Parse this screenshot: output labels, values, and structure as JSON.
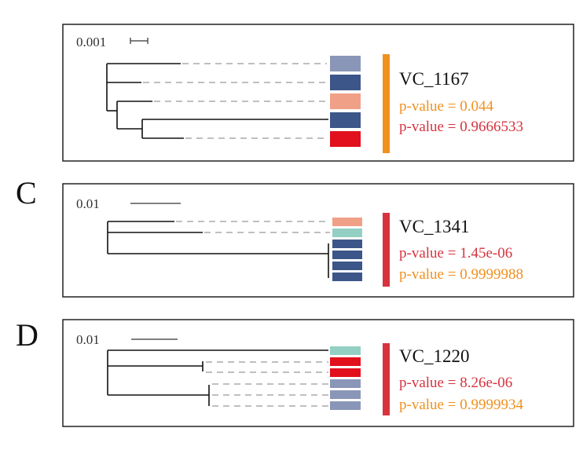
{
  "panels": [
    {
      "letter": "",
      "scale_label": "0.001",
      "gene": "VC_1167",
      "bar_color": "#f0901e",
      "pvalues": [
        {
          "text": "p-value = 0.044",
          "color": "#f0901e"
        },
        {
          "text": "p-value = 0.9666533",
          "color": "#d6333f"
        }
      ],
      "leaf_colors": [
        "#8a96b8",
        "#3d5689",
        "#f1a088",
        "#3d5689",
        "#e2101c"
      ]
    },
    {
      "letter": "C",
      "scale_label": "0.01",
      "gene": "VC_1341",
      "bar_color": "#d6333f",
      "pvalues": [
        {
          "text": "p-value = 1.45e-06",
          "color": "#d6333f"
        },
        {
          "text": "p-value = 0.9999988",
          "color": "#f0901e"
        }
      ],
      "leaf_colors": [
        "#f1a088",
        "#93d0c3",
        "#3d5689",
        "#3d5689",
        "#3d5689",
        "#3d5689",
        "#3d5689"
      ]
    },
    {
      "letter": "D",
      "scale_label": "0.01",
      "gene": "VC_1220",
      "bar_color": "#d6333f",
      "pvalues": [
        {
          "text": "p-value = 8.26e-06",
          "color": "#d6333f"
        },
        {
          "text": "p-value = 0.9999934",
          "color": "#f0901e"
        }
      ],
      "leaf_colors": [
        "#93d0c3",
        "#e2101c",
        "#e2101c",
        "#8a96b8",
        "#8a96b8",
        "#8a96b8"
      ]
    }
  ]
}
